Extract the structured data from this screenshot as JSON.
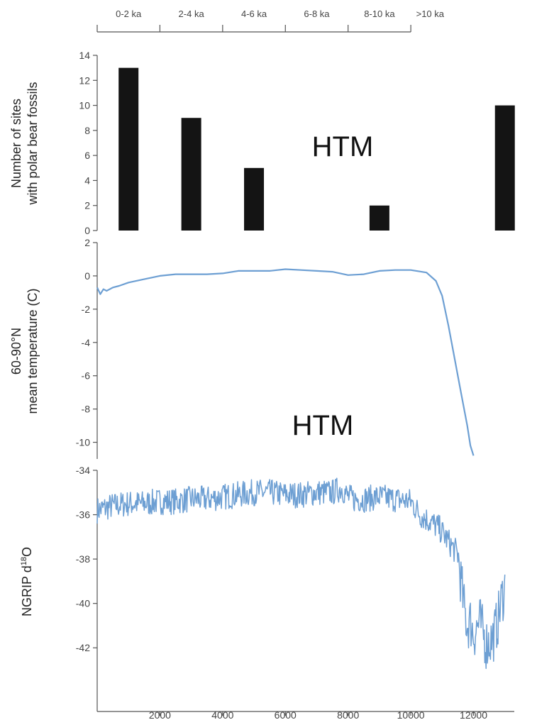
{
  "colors": {
    "bar": "#141414",
    "line": "#6d9fd3",
    "axis": "#555555"
  },
  "period_bar": {
    "labels": [
      "0-2 ka",
      "2-4 ka",
      "4-6 ka",
      "6-8 ka",
      "8-10 ka",
      ">10 ka"
    ],
    "boundaries": [
      0,
      2000,
      4000,
      6000,
      8000,
      10000
    ]
  },
  "chart_data": [
    {
      "type": "bar",
      "ylabel_line1": "Number of sites",
      "ylabel_line2": "with polar bear fossils",
      "annotation": "HTM",
      "ylim": [
        0,
        14
      ],
      "yticks": [
        0,
        2,
        4,
        6,
        8,
        10,
        12,
        14
      ],
      "categories": [
        "0-2 ka",
        "2-4 ka",
        "4-6 ka",
        "6-8 ka",
        "8-10 ka",
        ">10 ka"
      ],
      "x": [
        1000,
        3000,
        5000,
        7000,
        9000,
        13000
      ],
      "values": [
        13,
        9,
        5,
        0,
        2,
        10
      ]
    },
    {
      "type": "line",
      "ylabel_line1": "60-90°N",
      "ylabel_line2": "mean temperature (C)",
      "annotation": "HTM",
      "ylim": [
        -11,
        2
      ],
      "yticks": [
        2,
        0,
        -2,
        -4,
        -6,
        -8,
        -10
      ],
      "x": [
        0,
        100,
        200,
        300,
        500,
        700,
        1000,
        1500,
        2000,
        2500,
        3000,
        3500,
        4000,
        4500,
        5000,
        5500,
        6000,
        6500,
        7000,
        7500,
        8000,
        8500,
        9000,
        9500,
        10000,
        10500,
        10800,
        11000,
        11200,
        11400,
        11600,
        11800,
        11900,
        12000
      ],
      "y": [
        -0.7,
        -1.1,
        -0.8,
        -0.9,
        -0.7,
        -0.6,
        -0.4,
        -0.2,
        0.0,
        0.1,
        0.1,
        0.1,
        0.15,
        0.3,
        0.3,
        0.3,
        0.4,
        0.35,
        0.3,
        0.25,
        0.05,
        0.1,
        0.3,
        0.35,
        0.35,
        0.2,
        -0.3,
        -1.2,
        -3.0,
        -5.0,
        -7.0,
        -9.0,
        -10.2,
        -10.8
      ]
    },
    {
      "type": "line",
      "ylabel": "NGRIP d18O",
      "ylim": [
        -44,
        -34
      ],
      "yticks": [
        -34,
        -36,
        -38,
        -40,
        -42
      ],
      "xticks": [
        2000,
        4000,
        6000,
        8000,
        10000,
        12000
      ],
      "xlim": [
        0,
        13300
      ],
      "x": [
        0,
        500,
        1000,
        1500,
        2000,
        2500,
        3000,
        3500,
        4000,
        4500,
        5000,
        5500,
        6000,
        6500,
        7000,
        7500,
        7800,
        8000,
        8200,
        8500,
        9000,
        9500,
        10000,
        10300,
        10600,
        10900,
        11100,
        11300,
        11500,
        11600,
        11700,
        11800,
        11900,
        12000,
        12200,
        12400,
        12600,
        12700,
        12800,
        12900,
        13000
      ],
      "y": [
        -35.8,
        -35.6,
        -35.5,
        -35.5,
        -35.4,
        -35.4,
        -35.3,
        -35.3,
        -35.2,
        -35.1,
        -35.0,
        -35.0,
        -35.1,
        -35.1,
        -35.0,
        -35.0,
        -34.8,
        -35.2,
        -35.3,
        -35.3,
        -35.2,
        -35.3,
        -35.4,
        -36.0,
        -36.3,
        -36.6,
        -37.0,
        -37.4,
        -37.8,
        -39.0,
        -40.2,
        -41.0,
        -40.8,
        -41.4,
        -40.8,
        -41.8,
        -41.6,
        -41.2,
        -40.6,
        -39.8,
        -39.3
      ]
    }
  ]
}
